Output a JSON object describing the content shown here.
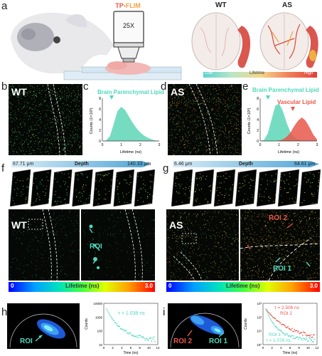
{
  "panel_labels": {
    "a": "a",
    "b": "b",
    "c": "c",
    "d": "d",
    "e": "e",
    "f": "f",
    "g": "g",
    "h": "h",
    "i": "i"
  },
  "setup": {
    "method_prefix": "TP-",
    "method_suffix": "FLIM",
    "objective": "25X",
    "wt": "WT",
    "as": "AS",
    "low": "Low",
    "lifetime": "Lifetime",
    "high": "High"
  },
  "image_labels": {
    "wt": "WT",
    "as": "AS"
  },
  "hist_wt": {
    "title": "Brain Parenchymal Lipid",
    "ylabel": "Counts (1×10³)",
    "xlabel": "Lifetime (ns)",
    "chart_data": {
      "type": "area",
      "x": [
        0,
        0.2,
        0.4,
        0.6,
        0.8,
        1.0,
        1.2,
        1.4,
        1.6,
        1.8,
        2.0,
        2.2,
        2.4,
        2.6,
        2.8,
        3.0
      ],
      "series": [
        {
          "name": "Brain Parenchymal Lipid",
          "values": [
            0,
            0.1,
            0.9,
            3.2,
            5.6,
            6.4,
            5.8,
            4.6,
            3.4,
            2.4,
            1.6,
            1.0,
            0.6,
            0.3,
            0.1,
            0
          ]
        }
      ],
      "ylim": [
        0,
        8
      ],
      "xticks": [
        "0",
        "1",
        "2",
        "3"
      ]
    }
  },
  "hist_as": {
    "title_1": "Brain Parenchymal Lipid",
    "title_2": "Vascular Lipid",
    "ylabel": "Counts (1×10³)",
    "xlabel": "Lifetime (ns)",
    "chart_data": {
      "type": "area",
      "x": [
        0,
        0.2,
        0.4,
        0.6,
        0.8,
        1.0,
        1.2,
        1.4,
        1.6,
        1.8,
        2.0,
        2.2,
        2.4,
        2.6,
        2.8,
        3.0
      ],
      "series": [
        {
          "name": "Brain Parenchymal Lipid",
          "values": [
            0,
            0.2,
            1.4,
            4.0,
            6.6,
            7.0,
            5.6,
            3.4,
            1.6,
            0.7,
            0.3,
            0.1,
            0,
            0,
            0,
            0
          ]
        },
        {
          "name": "Vascular Lipid",
          "values": [
            0,
            0,
            0,
            0,
            0,
            0.1,
            0.3,
            0.8,
            1.6,
            2.8,
            3.8,
            4.4,
            3.8,
            2.6,
            1.2,
            0.3
          ]
        }
      ],
      "ylim": [
        0,
        8
      ],
      "xticks": [
        "0",
        "1",
        "2",
        "3"
      ]
    }
  },
  "depth_f": {
    "start": "67.71 μm",
    "label": "Depth",
    "end": "140.33 μm"
  },
  "depth_g": {
    "start": "6.46 μm",
    "label": "Depth",
    "end": "64.61 μm"
  },
  "roi_labels": {
    "f_roi": "ROI",
    "g_roi1": "ROI 1",
    "g_roi2": "ROI 2",
    "h_roi": "ROI",
    "i_roi1": "ROI 1",
    "i_roi2": "ROI 2"
  },
  "lifebar": {
    "min": "0",
    "label": "Lifetime (ns)",
    "max": "3.0"
  },
  "decay_h": {
    "tau": "τ = 1.038 ns",
    "ylabel": "Counts",
    "xlabel": "Time (ns)",
    "yticks": [
      "10000",
      "1000",
      "100",
      "10"
    ],
    "xticks": [
      "0",
      "2",
      "4",
      "6",
      "8",
      "10",
      "12"
    ]
  },
  "decay_i": {
    "tau1": "τ = 2.506 ns",
    "roi2": "ROI 2",
    "roi1": "ROI 1",
    "tau2": "τ = 1.076 ns",
    "ylabel": "Counts",
    "xlabel": "Time (ns)",
    "yticks": [
      "10³",
      "10²",
      "10¹",
      "10⁰"
    ],
    "xticks": [
      "0",
      "2",
      "4",
      "6",
      "8",
      "10",
      "12"
    ]
  },
  "colors": {
    "cyan": "#4fd8bf",
    "red": "#e8574a",
    "orange": "#f0a040"
  }
}
